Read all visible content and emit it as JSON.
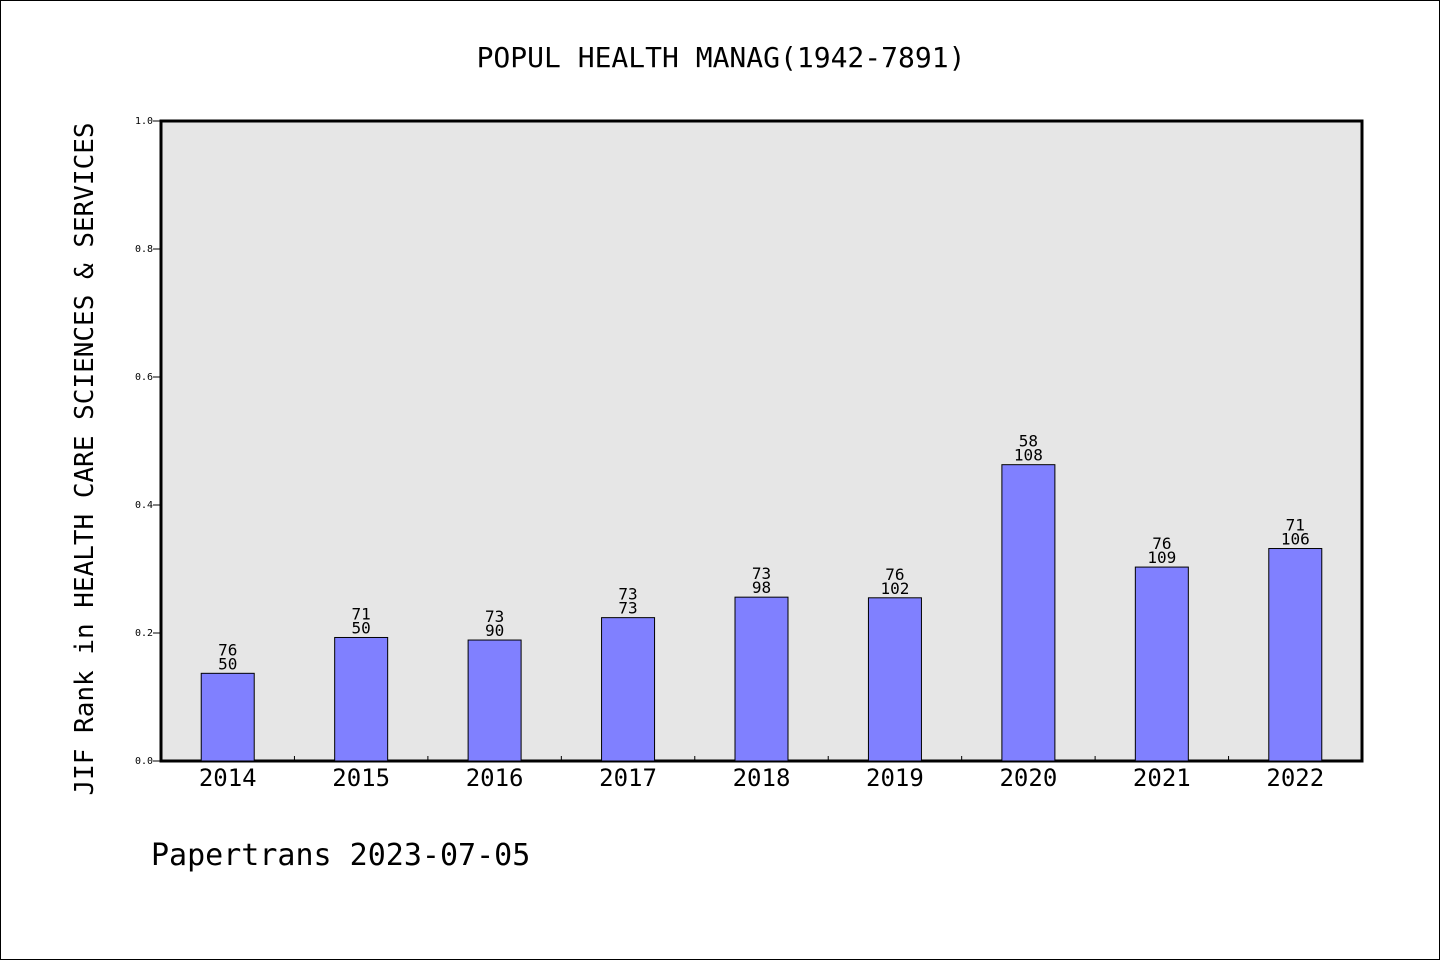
{
  "chart_data": {
    "type": "bar",
    "title": "POPUL HEALTH MANAG(1942-7891)",
    "xlabel": "",
    "ylabel": "JIF Rank in HEALTH CARE SCIENCES & SERVICES",
    "ylim": [
      0,
      1.0
    ],
    "yticks": [
      "0.0",
      "0.2",
      "0.4",
      "0.6",
      "0.8",
      "1.0"
    ],
    "grid": false,
    "categories": [
      "2014",
      "2015",
      "2016",
      "2017",
      "2018",
      "2019",
      "2020",
      "2021",
      "2022"
    ],
    "values": [
      0.137,
      0.193,
      0.189,
      0.224,
      0.256,
      0.255,
      0.463,
      0.303,
      0.332
    ],
    "label_top": [
      "76",
      "71",
      "73",
      "73",
      "73",
      "76",
      "58",
      "76",
      "71"
    ],
    "label_bottom": [
      "50",
      "50",
      "90",
      "73",
      "98",
      "102",
      "108",
      "109",
      "106"
    ],
    "colors": {
      "bar": "#8080ff",
      "plot_bg": "#e6e6e6",
      "edge": "#000000"
    }
  },
  "footer": {
    "source": "Papertrans 2023-07-05"
  }
}
